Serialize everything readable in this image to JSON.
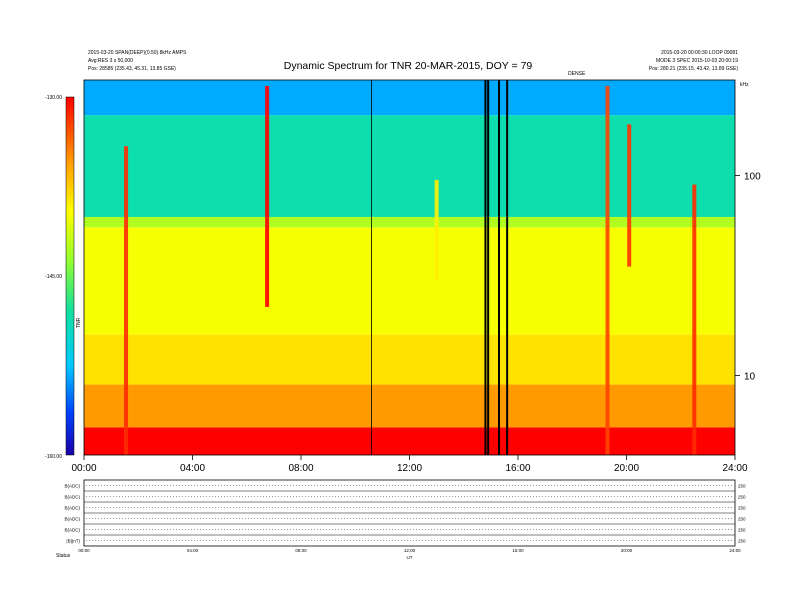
{
  "header": {
    "title": "Dynamic Spectrum for TNR 20-MAR-2015, DOY = 79",
    "info_left_1": "2015-03-20 SPAN(DEEP)(0.50) 8kHz AMPS",
    "info_left_2": "Avg:RES 3 s 50,000",
    "info_left_3": "Pos:  28585 (235.43, 45.31, 13.85 GSE)",
    "info_right_1": "2015-03-20 00:00:30 LOOP 09081",
    "info_right_2": "MODE 3 SPEC 2015-10-03 20:00:19",
    "info_right_3": "Pos:  280.21 (235.15, 43.42, 13.89 GSE)",
    "small_label": "DENSE",
    "corner_unit": "kHz"
  },
  "colorbar": {
    "tick_labels": [
      "-130.00",
      "-145.00",
      "-160.00"
    ],
    "label": "TNR"
  },
  "chart_data": {
    "type": "heatmap",
    "title": "Dynamic Spectrum for TNR 20-MAR-2015, DOY = 79",
    "x_ticks": [
      "00:00",
      "04:00",
      "08:00",
      "12:00",
      "16:00",
      "20:00",
      "24:00"
    ],
    "x_range_hours": [
      0,
      24
    ],
    "y_scale": "log",
    "y_ticks": [
      {
        "label": "10",
        "value": 10
      },
      {
        "label": "100",
        "value": 100
      }
    ],
    "y_range": [
      4,
      300
    ],
    "colorbar_range": [
      -160,
      -130
    ],
    "colorbar_ticks": [
      -130,
      -145,
      -160
    ],
    "bands": [
      {
        "from": 4,
        "to": 5.5,
        "level": 0.0
      },
      {
        "from": 5.5,
        "to": 9,
        "level": 0.18
      },
      {
        "from": 9,
        "to": 16,
        "level": 0.28
      },
      {
        "from": 16,
        "to": 55,
        "level": 0.33
      },
      {
        "from": 55,
        "to": 62,
        "level": 0.42
      },
      {
        "from": 62,
        "to": 200,
        "level": 0.62
      },
      {
        "from": 200,
        "to": 300,
        "level": 0.78
      }
    ],
    "events": [
      {
        "t": 1.55,
        "f_low": 4,
        "f_high": 140,
        "level": 0.05
      },
      {
        "t": 6.75,
        "f_low": 22,
        "f_high": 280,
        "level": 0.0
      },
      {
        "t": 13.0,
        "f_low": 30,
        "f_high": 95,
        "level": 0.3
      },
      {
        "t": 19.3,
        "f_low": 4,
        "f_high": 280,
        "level": 0.08
      },
      {
        "t": 20.1,
        "f_low": 35,
        "f_high": 180,
        "level": 0.06
      },
      {
        "t": 22.5,
        "f_low": 4,
        "f_high": 90,
        "level": 0.05
      }
    ],
    "data_gaps_hours": [
      14.8,
      14.9,
      15.3,
      15.6
    ],
    "vertical_lines_hours": [
      10.6
    ],
    "line_panels": {
      "count": 6,
      "left_labels": [
        "B(ADC)",
        "B(ADC)",
        "B(ADC)",
        "B(ADC)",
        "B(ADC)",
        "|B|(nT)"
      ],
      "right_labels": [
        "250",
        "250",
        "250",
        "250",
        "250",
        "250"
      ],
      "x_ticks": [
        "00:00",
        "04:00",
        "08:00",
        "12:00",
        "16:00",
        "20:00",
        "24:00"
      ],
      "x_title": "UT"
    },
    "footer_label": "Status"
  }
}
